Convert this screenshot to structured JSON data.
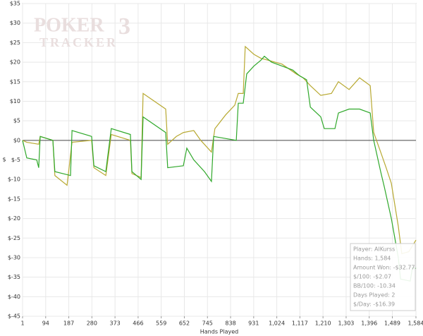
{
  "watermark": {
    "line1": "POKER",
    "line2": "TRACKER",
    "version": "3"
  },
  "chart_data": {
    "type": "line",
    "x_label": "Hands Played",
    "y_label": "$",
    "xlim": [
      1,
      1584
    ],
    "ylim": [
      -45,
      35
    ],
    "xticks": [
      1,
      94,
      187,
      280,
      373,
      466,
      559,
      652,
      745,
      838,
      931,
      {
        "value": 1024,
        "label": "1,024"
      },
      {
        "value": 1117,
        "label": "1,117"
      },
      {
        "value": 1210,
        "label": "1,210"
      },
      {
        "value": 1303,
        "label": "1,303"
      },
      {
        "value": 1396,
        "label": "1,396"
      },
      {
        "value": 1489,
        "label": "1,489"
      },
      {
        "value": 1584,
        "label": "1,584"
      }
    ],
    "yticks": [
      {
        "value": 35,
        "label": "$35"
      },
      {
        "value": 30,
        "label": "$30"
      },
      {
        "value": 25,
        "label": "$25"
      },
      {
        "value": 20,
        "label": "$20"
      },
      {
        "value": 15,
        "label": "$15"
      },
      {
        "value": 10,
        "label": "$10"
      },
      {
        "value": 5,
        "label": "$5"
      },
      {
        "value": 0,
        "label": "$0"
      },
      {
        "value": -5,
        "label": "$-5"
      },
      {
        "value": -10,
        "label": "$-10"
      },
      {
        "value": -15,
        "label": "$-15"
      },
      {
        "value": -20,
        "label": "$-20"
      },
      {
        "value": -25,
        "label": "$-25"
      },
      {
        "value": -30,
        "label": "$-30"
      },
      {
        "value": -35,
        "label": "$-35"
      },
      {
        "value": -40,
        "label": "$-40"
      },
      {
        "value": -45,
        "label": "$-45"
      }
    ],
    "grid": true,
    "series": [
      {
        "color": "#b8a932",
        "x": [
          1,
          18,
          66,
          72,
          123,
          131,
          180,
          200,
          279,
          288,
          336,
          358,
          435,
          441,
          478,
          486,
          577,
          585,
          620,
          648,
          690,
          718,
          761,
          775,
          818,
          855,
          869,
          889,
          897,
          932,
          960,
          989,
          1045,
          1102,
          1130,
          1159,
          1201,
          1244,
          1272,
          1315,
          1357,
          1400,
          1414,
          1442,
          1464,
          1485,
          1513,
          1527,
          1555,
          1570,
          1584
        ],
        "values": [
          0,
          -0.5,
          -1,
          1,
          0,
          -9,
          -11.5,
          -0.5,
          0,
          -7,
          -9,
          1.5,
          0,
          -8.5,
          -9.5,
          12,
          8,
          -1,
          1,
          2,
          2.5,
          0,
          -3,
          3,
          6.5,
          9,
          12,
          12,
          24,
          22,
          21,
          20.5,
          19.5,
          17,
          16,
          14,
          11.5,
          12,
          15,
          13,
          16,
          14,
          2,
          -3,
          -7,
          -11,
          -22,
          -29,
          -28.5,
          -27,
          -25.5
        ]
      },
      {
        "color": "#2fa82a",
        "x": [
          1,
          18,
          58,
          66,
          72,
          123,
          131,
          194,
          200,
          279,
          288,
          336,
          358,
          435,
          441,
          478,
          486,
          577,
          585,
          648,
          662,
          690,
          733,
          761,
          770,
          861,
          869,
          889,
          903,
          932,
          960,
          974,
          1003,
          1045,
          1088,
          1116,
          1144,
          1159,
          1201,
          1215,
          1258,
          1272,
          1315,
          1357,
          1400,
          1414,
          1442,
          1457,
          1485,
          1499,
          1513,
          1522,
          1561,
          1570,
          1584
        ],
        "values": [
          0,
          -4.5,
          -5,
          -7,
          1,
          0,
          -8,
          -9,
          2.5,
          1,
          -6.5,
          -8,
          3,
          1.5,
          -8,
          -10,
          6,
          2,
          -7,
          -6.5,
          -2,
          -5,
          -8,
          -10.5,
          1,
          0,
          9.5,
          9.5,
          17,
          19,
          20.5,
          21.5,
          20,
          19,
          18,
          16.5,
          15.5,
          8.5,
          6,
          3,
          3,
          7,
          8,
          8,
          7,
          0,
          -8,
          -12,
          -20,
          -25,
          -30,
          -35.5,
          -36,
          -32.5,
          -32.77
        ]
      }
    ],
    "info_box": [
      "Player: AlKurss",
      "Hands: 1,584",
      "Amount Won: -$32.77",
      "$/100: -$2.07",
      "BB/100: -10.34",
      "Days Played: 2",
      "$/Day: -$16.39"
    ]
  }
}
